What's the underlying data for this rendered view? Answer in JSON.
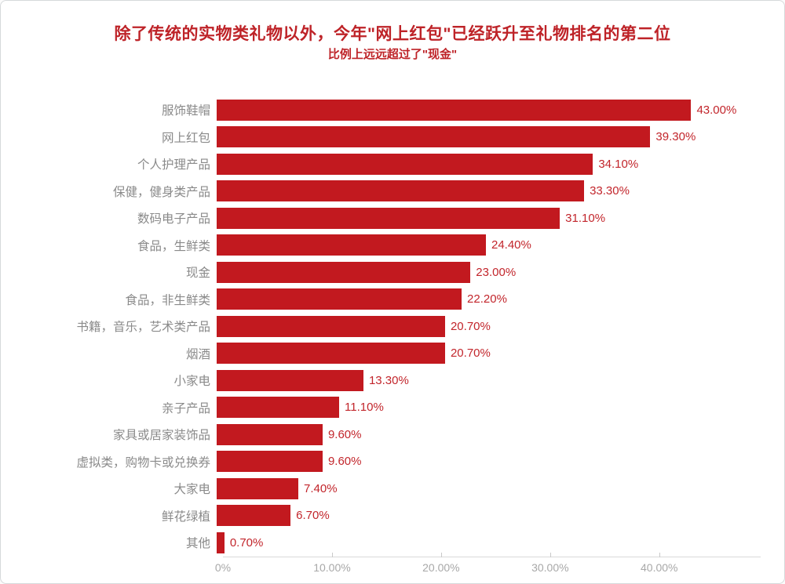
{
  "page": {
    "background_color": "#ffffff",
    "card_border_color": "#d6d9db"
  },
  "header": {
    "title": "除了传统的实物类礼物以外，今年\"网上红包\"已经跃升至礼物排名的第二位",
    "subtitle": "比例上远远超过了\"现金\"",
    "title_color": "#be2328"
  },
  "chart_data": {
    "type": "bar",
    "orientation": "horizontal",
    "title": "除了传统的实物类礼物以外，今年\"网上红包\"已经跃升至礼物排名的第二位",
    "subtitle": "比例上远远超过了\"现金\"",
    "categories": [
      "服饰鞋帽",
      "网上红包",
      "个人护理产品",
      "保健，健身类产品",
      "数码电子产品",
      "食品，生鲜类",
      "现金",
      "食品，非生鲜类",
      "书籍，音乐，艺术类产品",
      "烟酒",
      "小家电",
      "亲子产品",
      "家具或居家装饰品",
      "虚拟类，购物卡或兑换券",
      "大家电",
      "鲜花绿植",
      "其他"
    ],
    "values": [
      43.0,
      39.3,
      34.1,
      33.3,
      31.1,
      24.4,
      23.0,
      22.2,
      20.7,
      20.7,
      13.3,
      11.1,
      9.6,
      9.6,
      7.4,
      6.7,
      0.7
    ],
    "value_labels": [
      "43.00%",
      "39.30%",
      "34.10%",
      "33.30%",
      "31.10%",
      "24.40%",
      "23.00%",
      "22.20%",
      "20.70%",
      "20.70%",
      "13.30%",
      "11.10%",
      "9.60%",
      "9.60%",
      "7.40%",
      "6.70%",
      "0.70%"
    ],
    "x_ticks": [
      {
        "v": 0,
        "label": "0%"
      },
      {
        "v": 10,
        "label": "10.00%"
      },
      {
        "v": 20,
        "label": "20.00%"
      },
      {
        "v": 30,
        "label": "30.00%"
      },
      {
        "v": 40,
        "label": "40.00%"
      }
    ],
    "xlim": [
      0,
      49.3
    ],
    "xlabel": "",
    "ylabel": "",
    "grid": false,
    "legend": null,
    "bar_color": "#c2191f",
    "value_label_color": "#c2252b",
    "category_label_color": "#8a8a8a",
    "axis_label_color": "#a8a8a8"
  }
}
